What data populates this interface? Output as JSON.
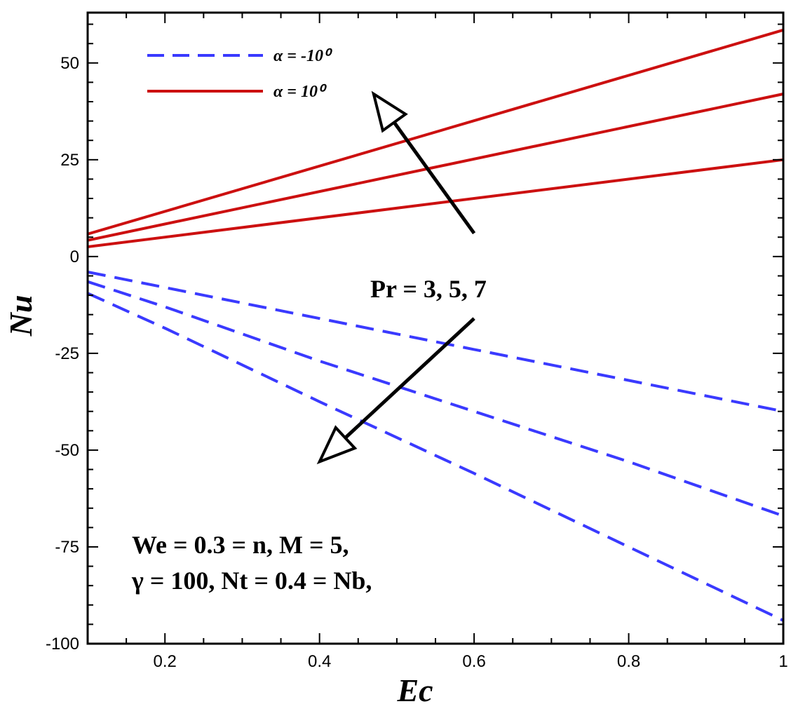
{
  "chart_data": {
    "type": "line",
    "title": "",
    "xlabel": "Ec",
    "ylabel": "Nu",
    "xlim": [
      0.1,
      1.0
    ],
    "ylim": [
      -100,
      63
    ],
    "xticks": [
      0.2,
      0.4,
      0.6,
      0.8,
      1
    ],
    "xtick_labels": [
      "0.2",
      "0.4",
      "0.6",
      "0.8",
      "1"
    ],
    "yticks": [
      50,
      25,
      0,
      -25,
      -50,
      -75,
      -100
    ],
    "ytick_labels": [
      "50",
      "25",
      "0",
      "-25",
      "-50",
      "-75",
      "-100"
    ],
    "legend": [
      {
        "label": "α = -10⁰",
        "style": "dashed",
        "color": "#3a3aff"
      },
      {
        "label": "α = 10⁰",
        "style": "solid",
        "color": "#cc1010"
      }
    ],
    "legend_position": "top-left",
    "series": [
      {
        "group": "α = 10⁰",
        "param": "Pr = 3",
        "style": "solid",
        "color": "#cc1010",
        "x": [
          0.1,
          1.0
        ],
        "y": [
          2.5,
          25
        ]
      },
      {
        "group": "α = 10⁰",
        "param": "Pr = 5",
        "style": "solid",
        "color": "#cc1010",
        "x": [
          0.1,
          1.0
        ],
        "y": [
          4.2,
          42
        ]
      },
      {
        "group": "α = 10⁰",
        "param": "Pr = 7",
        "style": "solid",
        "color": "#cc1010",
        "x": [
          0.1,
          1.0
        ],
        "y": [
          5.8,
          58.5
        ]
      },
      {
        "group": "α = -10⁰",
        "param": "Pr = 3",
        "style": "dashed",
        "color": "#3a3aff",
        "x": [
          0.1,
          0.2,
          0.4,
          0.6,
          0.8,
          1.0
        ],
        "y": [
          -4,
          -8,
          -16,
          -24,
          -32,
          -40
        ]
      },
      {
        "group": "α = -10⁰",
        "param": "Pr = 5",
        "style": "dashed",
        "color": "#3a3aff",
        "x": [
          0.1,
          0.2,
          0.4,
          0.6,
          0.8,
          1.0
        ],
        "y": [
          -6.5,
          -13,
          -27,
          -40,
          -53,
          -67
        ]
      },
      {
        "group": "α = -10⁰",
        "param": "Pr = 7",
        "style": "dashed",
        "color": "#3a3aff",
        "x": [
          0.1,
          0.2,
          0.4,
          0.6,
          0.8,
          1.0
        ],
        "y": [
          -9.5,
          -18.5,
          -37.5,
          -56,
          -75,
          -94
        ]
      }
    ],
    "annotations": {
      "pr_label": "Pr = 3, 5, 7",
      "params_line1": "We = 0.3 = n, M = 5,",
      "params_line2": "γ = 100, Nt = 0.4 = Nb,"
    },
    "arrows": [
      {
        "name": "arrow-up",
        "from": [
          0.6,
          6
        ],
        "to": [
          0.47,
          42
        ]
      },
      {
        "name": "arrow-down",
        "from": [
          0.6,
          -16
        ],
        "to": [
          0.4,
          -53
        ]
      }
    ],
    "grid": false
  }
}
